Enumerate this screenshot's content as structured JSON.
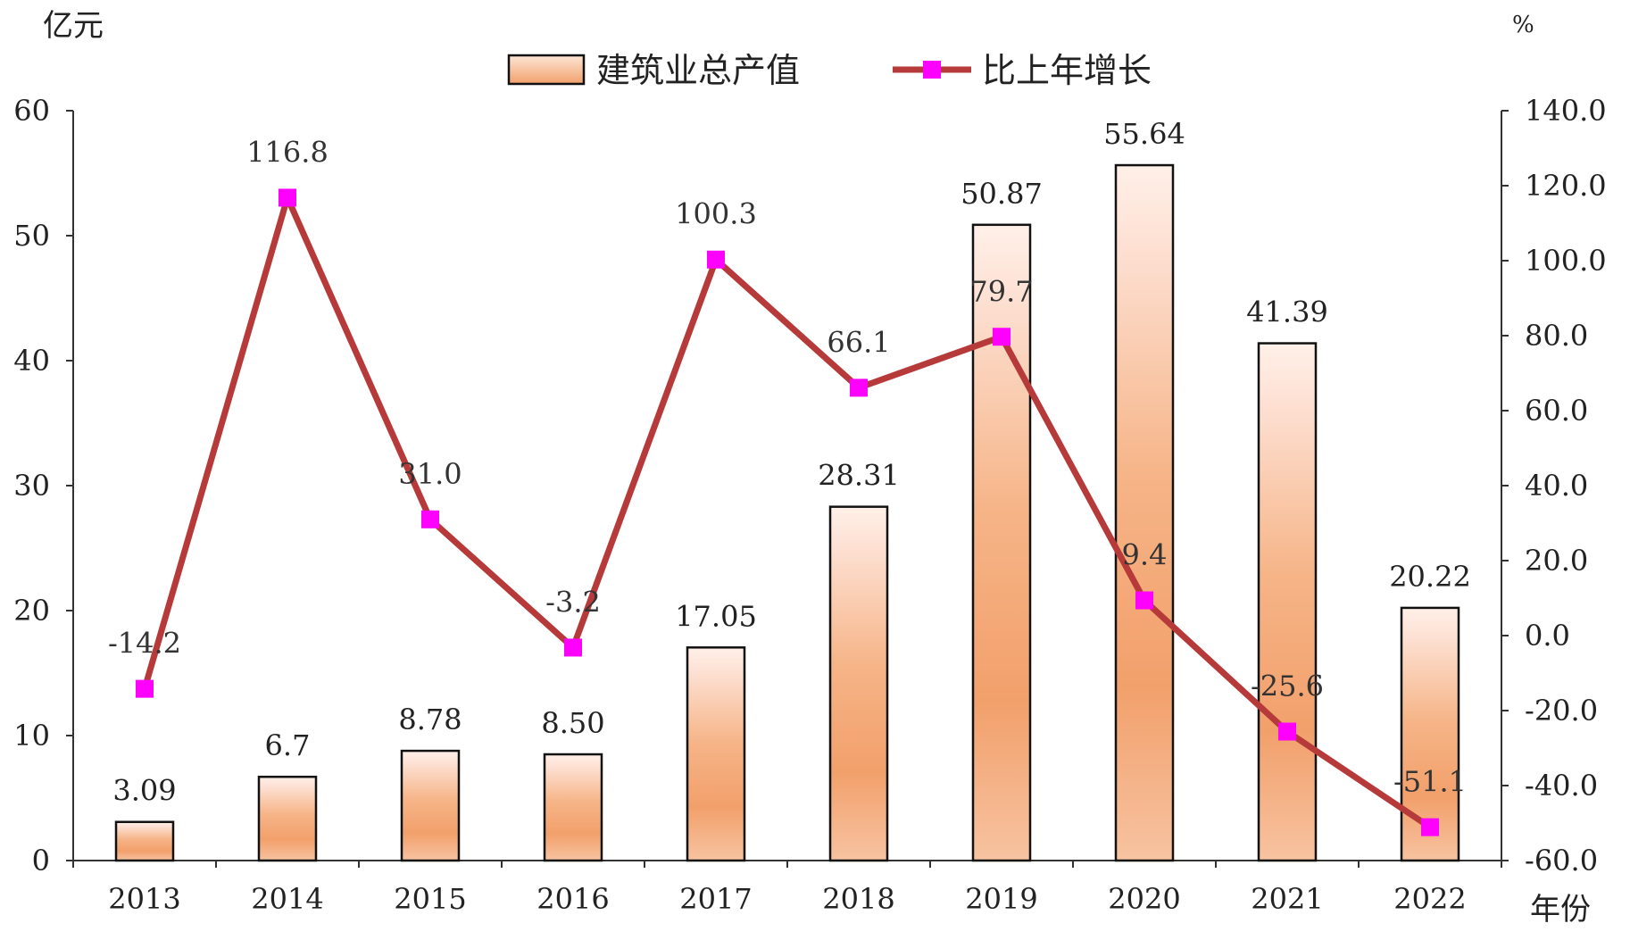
{
  "chart_data": {
    "type": "bar",
    "categories": [
      "2013",
      "2014",
      "2015",
      "2016",
      "2017",
      "2018",
      "2019",
      "2020",
      "2021",
      "2022"
    ],
    "series": [
      {
        "name": "建筑业总产值",
        "type": "bar",
        "axis": "left",
        "values": [
          3.09,
          6.7,
          8.78,
          8.5,
          17.05,
          28.31,
          50.87,
          55.64,
          41.39,
          20.22
        ],
        "labels": [
          "3.09",
          "6.7",
          "8.78",
          "8.50",
          "17.05",
          "28.31",
          "50.87",
          "55.64",
          "41.39",
          "20.22"
        ]
      },
      {
        "name": "比上年增长",
        "type": "line",
        "axis": "right",
        "values": [
          -14.2,
          116.8,
          31.0,
          -3.2,
          100.3,
          66.1,
          79.7,
          9.4,
          -25.6,
          -51.1
        ],
        "labels": [
          "-14.2",
          "116.8",
          "31.0",
          "-3.2",
          "100.3",
          "66.1",
          "79.7",
          "9.4",
          "-25.6",
          "-51.1"
        ]
      }
    ],
    "y_left": {
      "unit": "亿元",
      "range": [
        0,
        60
      ],
      "ticks": [
        "0",
        "10",
        "20",
        "30",
        "40",
        "50",
        "60"
      ]
    },
    "y_right": {
      "unit": "%",
      "range": [
        -60,
        140
      ],
      "ticks": [
        "-60.0",
        "-40.0",
        "-20.0",
        "0.0",
        "20.0",
        "40.0",
        "60.0",
        "80.0",
        "100.0",
        "120.0",
        "140.0"
      ]
    },
    "x_unit": "年份",
    "legend_position": "top-center",
    "grid": false,
    "colors": {
      "bar_fill_light": "#fde6d6",
      "bar_fill_mid": "#f7b98f",
      "bar_fill_dark": "#f19a63",
      "bar_border": "#111111",
      "line": "#b73a3a",
      "marker": "#ff00ff"
    }
  }
}
